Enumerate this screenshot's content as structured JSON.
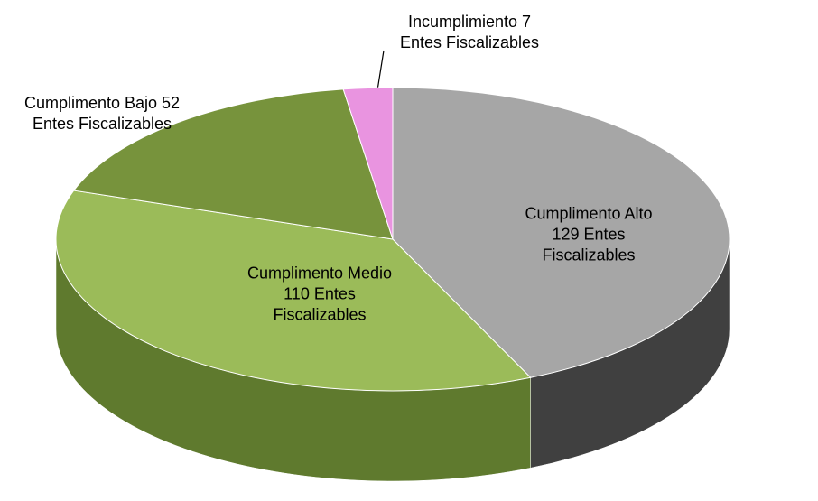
{
  "chart_data": {
    "type": "pie",
    "categories": [
      "Cumplimento Alto",
      "Cumplimento Medio",
      "Cumplimento Bajo",
      "Incumplimiento"
    ],
    "values": [
      129,
      110,
      52,
      7
    ],
    "value_labels": [
      "Cumplimento Alto\n129 Entes\nFiscalizables",
      "Cumplimento Medio\n110 Entes\nFiscalizables",
      "Cumplimento Bajo 52\nEntes Fiscalizables",
      "Incumplimiento 7\nEntes Fiscalizables"
    ],
    "colors": [
      "#a6a6a6",
      "#9bbb59",
      "#77933c",
      "#e994e0"
    ],
    "side_colors": [
      "#404040",
      "#5f7a2e",
      "#4f6427",
      "#a060a0"
    ]
  }
}
